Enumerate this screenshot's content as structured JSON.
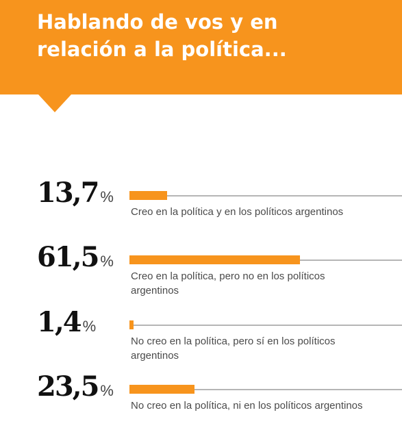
{
  "header": {
    "title": "Hablando de vos y en relación a la política..."
  },
  "colors": {
    "accent": "#f7941d",
    "track": "#b5b5b5",
    "text": "#4a4a4a"
  },
  "chart_data": {
    "type": "bar",
    "orientation": "horizontal",
    "title": "Hablando de vos y en relación a la política...",
    "unit": "%",
    "categories": [
      "Creo en la política y en los políticos argentinos",
      "Creo en la política, pero no en los políticos argentinos",
      "No creo en la política, pero sí en los políticos argentinos",
      "No creo en la política, ni en los políticos argentinos"
    ],
    "values": [
      13.7,
      61.5,
      1.4,
      23.5
    ],
    "value_labels": [
      "13,7",
      "61,5",
      "1,4",
      "23,5"
    ],
    "percent_sign": "%",
    "xlim": [
      0,
      100
    ],
    "grid": false,
    "legend": "none"
  }
}
